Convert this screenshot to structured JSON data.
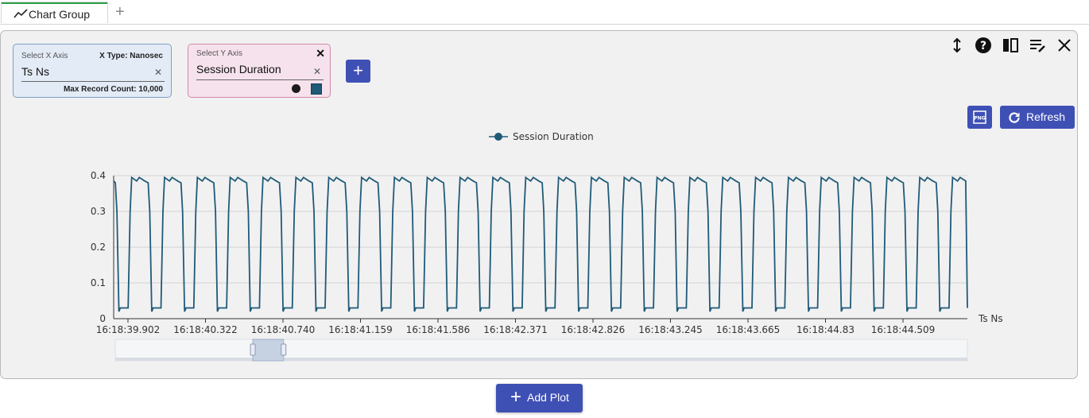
{
  "tab": {
    "label": "Chart Group",
    "icon": "line-chart-icon",
    "accent": "#2e9e48"
  },
  "x_axis": {
    "label": "Select X Axis",
    "type_label": "X Type: Nanosec",
    "value": "Ts Ns",
    "max_record": "Max Record Count: 10,000"
  },
  "y_axis": {
    "label": "Select Y Axis",
    "value": "Session Duration"
  },
  "buttons": {
    "refresh": "Refresh",
    "add_plot": "Add Plot",
    "png": "PNG"
  },
  "toolbar_icons": [
    "expand-vertical-icon",
    "help-icon",
    "split-columns-icon",
    "edit-list-icon",
    "close-icon"
  ],
  "colors": {
    "primary_button": "#3f50b5",
    "series": "#1f5a78",
    "x_box": "#e3ebf6",
    "y_box": "#f6e2ec"
  },
  "chart_data": {
    "type": "line",
    "legend": [
      "Session Duration"
    ],
    "series_name": "Session Duration",
    "xlabel": "Ts Ns",
    "ylabel": "",
    "ylim": [
      0,
      0.4
    ],
    "yticks": [
      "0",
      "0.1",
      "0.2",
      "0.3",
      "0.4"
    ],
    "xticks": [
      "16:18:39.902",
      "16:18:40.322",
      "16:18:40.740",
      "16:18:41.159",
      "16:18:41.586",
      "16:18:42.371",
      "16:18:42.826",
      "16:18:43.245",
      "16:18:43.665",
      "16:18:44.83",
      "16:18:44.509"
    ],
    "grid": true,
    "legend_position": "top",
    "high_level": 0.395,
    "low_level": 0.03,
    "cycles": 26,
    "zoom_window": [
      0.163,
      0.199
    ]
  }
}
